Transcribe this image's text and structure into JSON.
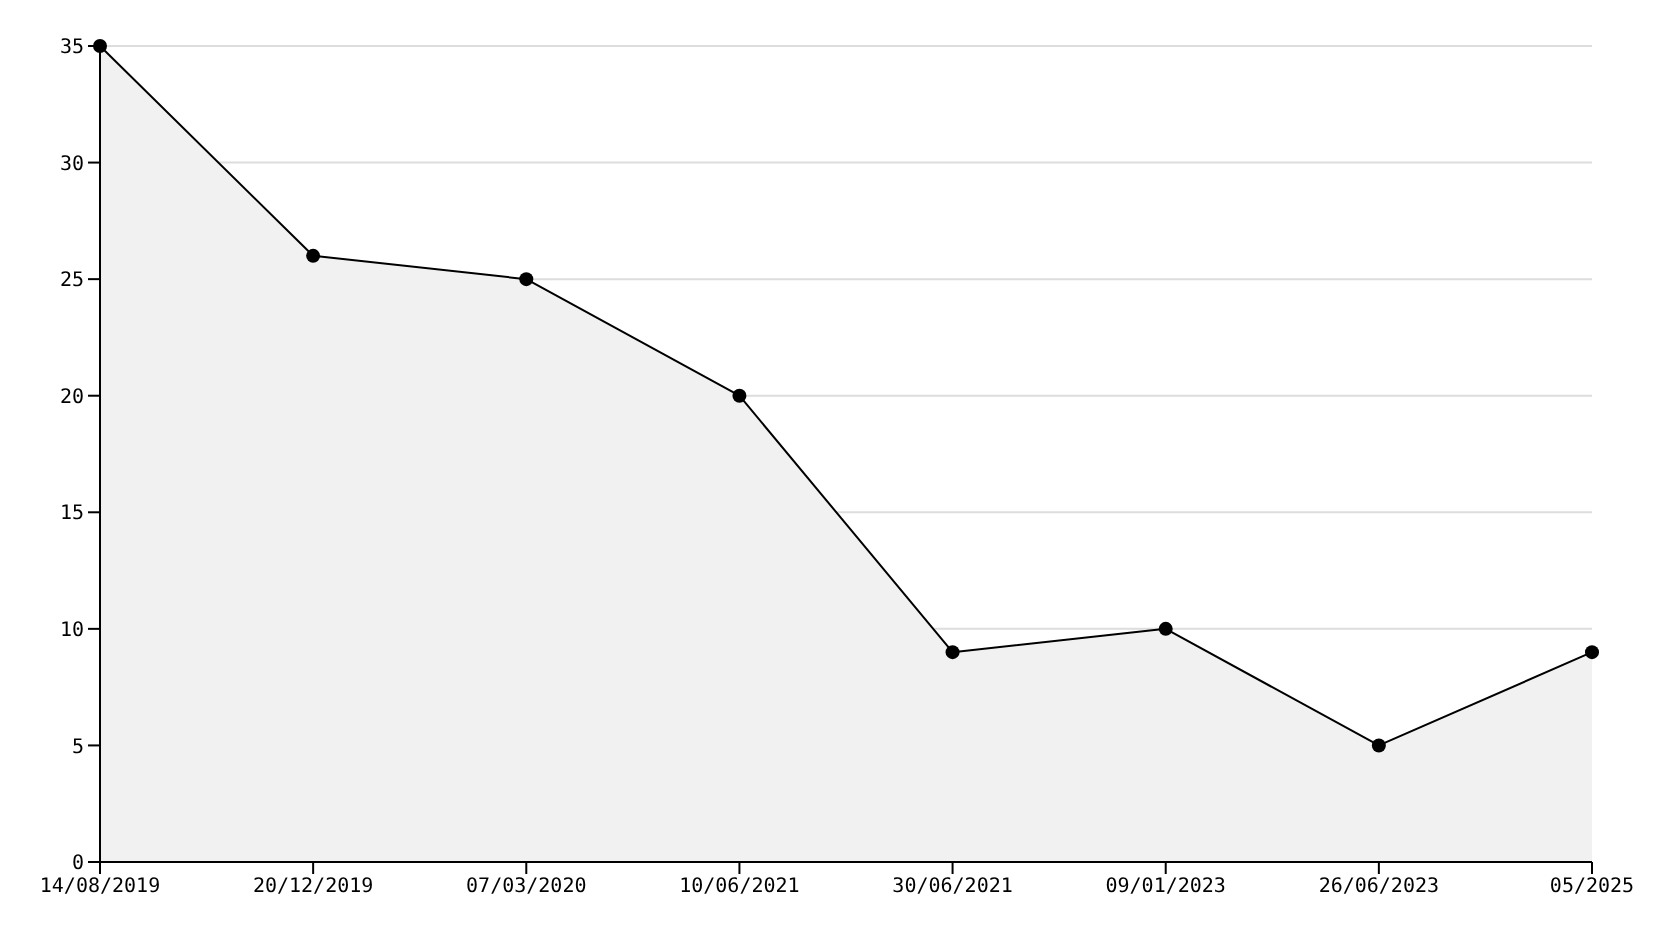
{
  "chart_data": {
    "type": "area",
    "categories": [
      "14/08/2019",
      "20/12/2019",
      "07/03/2020",
      "10/06/2021",
      "30/06/2021",
      "09/01/2023",
      "26/06/2023",
      "05/2025"
    ],
    "series": [
      {
        "color": "#000000",
        "values": [
          35,
          26,
          25,
          20,
          9,
          10,
          5,
          9
        ]
      }
    ],
    "ylim": [
      0,
      35
    ],
    "yticks": [
      0,
      5,
      10,
      15,
      20,
      25,
      30,
      35
    ],
    "grid": "y",
    "marker": "circle",
    "line_style": "solid"
  }
}
